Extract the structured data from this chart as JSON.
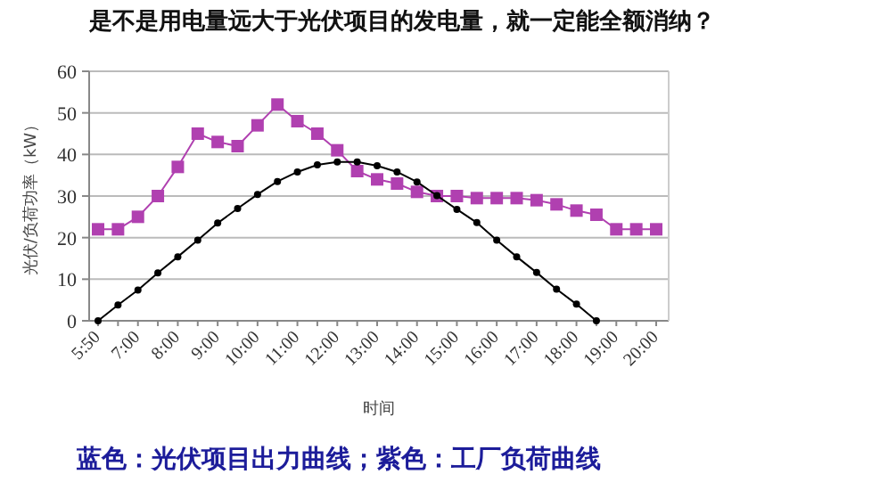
{
  "chart_data": {
    "type": "line",
    "title": "是不是用电量远大于光伏项目的发电量，就一定能全额消纳？",
    "xlabel": "时间",
    "ylabel": "光伏/负荷功率（kW）",
    "annotations": [
      "蓝色：光伏项目出力曲线；紫色：工厂负荷曲线"
    ],
    "categories": [
      "5:50",
      null,
      "7:00",
      null,
      "8:00",
      null,
      "9:00",
      null,
      "10:00",
      null,
      "11:00",
      null,
      "12:00",
      null,
      "13:00",
      null,
      "14:00",
      null,
      "15:00",
      null,
      "16:00",
      null,
      "17:00",
      null,
      "18:00",
      null,
      "19:00",
      null,
      "20:00"
    ],
    "series": [
      {
        "color": "#b040b0",
        "marker": "square",
        "values": [
          22,
          22,
          25,
          30,
          37,
          45,
          43,
          42,
          47,
          52,
          48,
          45,
          41,
          36,
          34,
          33,
          31,
          30,
          30,
          29.5,
          29.5,
          29.5,
          29,
          28,
          26.5,
          25.5,
          22,
          22,
          22
        ]
      },
      {
        "color": "#000000",
        "marker": "circle",
        "values": [
          0,
          3.8,
          7.4,
          11.5,
          15.4,
          19.4,
          23.5,
          27,
          30.4,
          33.5,
          35.8,
          37.5,
          38.2,
          38.2,
          37.3,
          35.8,
          33.4,
          30.1,
          26.8,
          23.6,
          19.4,
          15.4,
          11.6,
          7.6,
          4,
          0,
          null,
          null,
          null
        ]
      }
    ],
    "ylim": [
      0,
      60
    ],
    "yticks": [
      0,
      10,
      20,
      30,
      40,
      50,
      60
    ],
    "grid": "y",
    "line_style": "solid"
  }
}
